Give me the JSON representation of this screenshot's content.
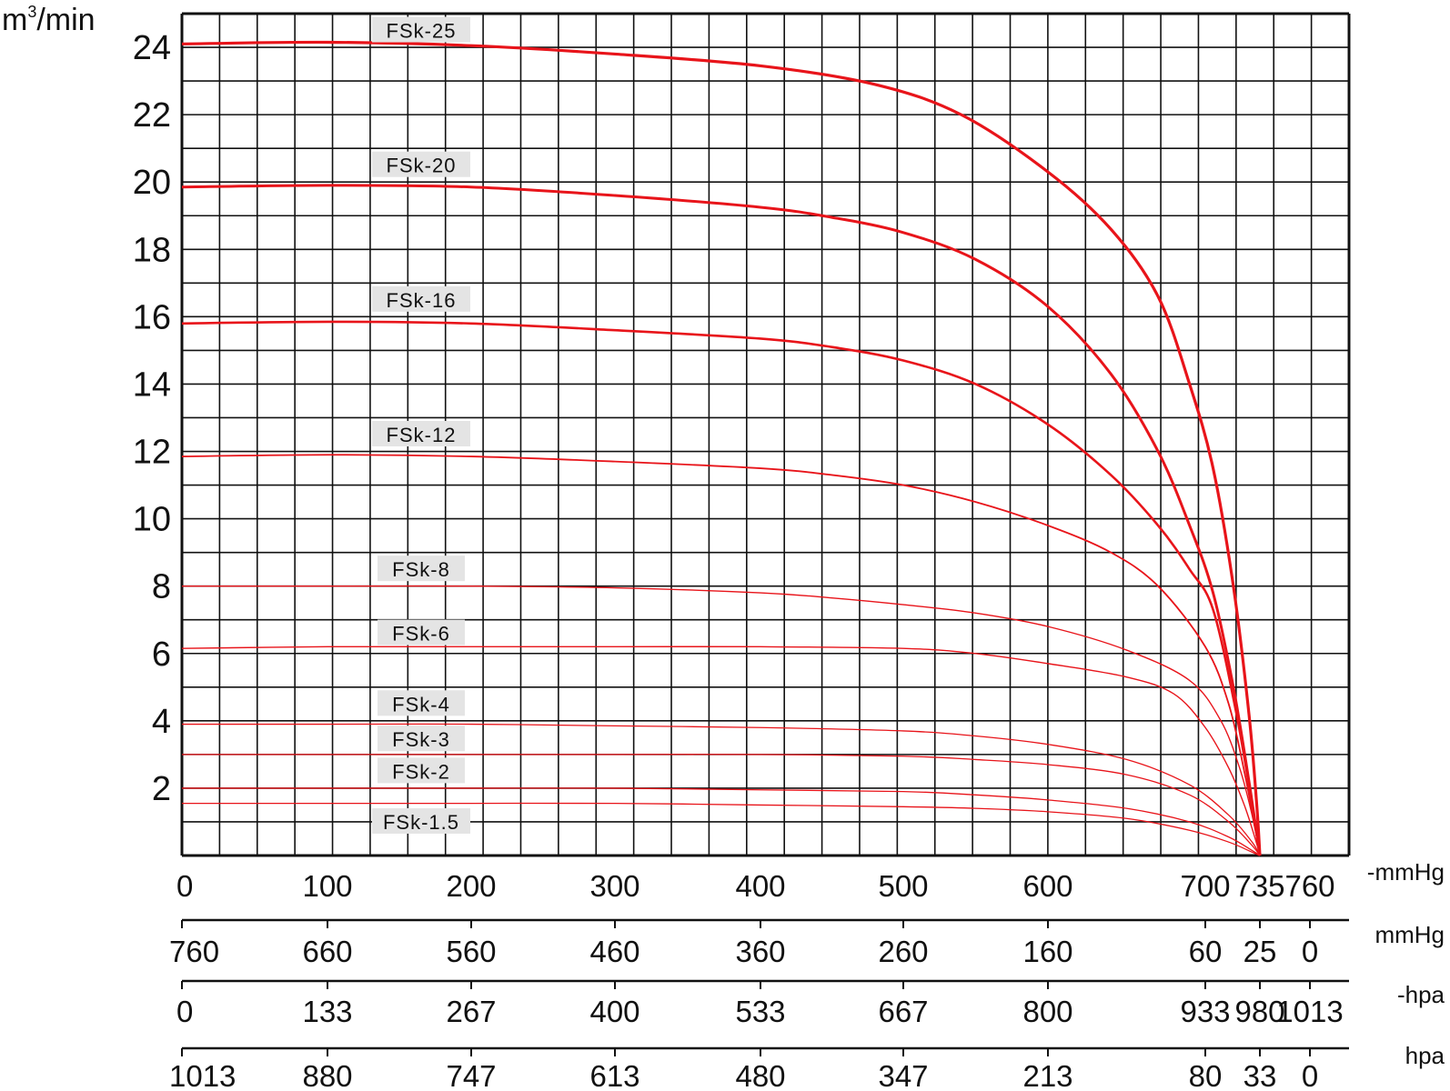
{
  "chart_data": {
    "type": "line",
    "ylabel": "m",
    "ylabel_sup": "3",
    "ylabel_suffix": "/min",
    "ylim": [
      0,
      25
    ],
    "y_ticks": [
      2,
      4,
      6,
      8,
      10,
      12,
      14,
      16,
      18,
      20,
      22,
      24
    ],
    "xlim": [
      0,
      760
    ],
    "x_unit": "mmHg",
    "grid": true,
    "series": [
      {
        "name": "FSk-25",
        "color": "#e8141a",
        "width": 3.2,
        "x": [
          0,
          100,
          200,
          300,
          400,
          480,
          540,
          600,
          640,
          670,
          690,
          705,
          718,
          728,
          733,
          735
        ],
        "y": [
          24.1,
          24.15,
          24.05,
          23.8,
          23.45,
          22.9,
          22.0,
          20.3,
          18.6,
          16.6,
          14.0,
          11.5,
          8.0,
          4.2,
          1.5,
          0
        ]
      },
      {
        "name": "FSk-20",
        "color": "#e8141a",
        "width": 3.0,
        "x": [
          0,
          100,
          200,
          300,
          400,
          450,
          500,
          550,
          600,
          640,
          670,
          690,
          705,
          718,
          728,
          735
        ],
        "y": [
          19.85,
          19.9,
          19.85,
          19.6,
          19.25,
          18.95,
          18.5,
          17.7,
          16.3,
          14.3,
          12.0,
          9.8,
          7.8,
          5.0,
          2.2,
          0
        ]
      },
      {
        "name": "FSk-16",
        "color": "#e8141a",
        "width": 2.6,
        "x": [
          0,
          100,
          200,
          300,
          400,
          450,
          500,
          550,
          600,
          640,
          670,
          690,
          705,
          720,
          730,
          735
        ],
        "y": [
          15.8,
          15.85,
          15.8,
          15.6,
          15.35,
          15.1,
          14.7,
          14.0,
          12.8,
          11.3,
          9.8,
          8.5,
          7.3,
          4.2,
          1.5,
          0
        ]
      },
      {
        "name": "FSk-12",
        "color": "#e8141a",
        "width": 1.8,
        "x": [
          0,
          100,
          200,
          300,
          400,
          450,
          500,
          550,
          600,
          640,
          670,
          700,
          715,
          725,
          732,
          735
        ],
        "y": [
          11.85,
          11.9,
          11.85,
          11.7,
          11.5,
          11.3,
          11.0,
          10.5,
          9.8,
          9.0,
          8.0,
          6.2,
          4.5,
          2.5,
          0.8,
          0
        ]
      },
      {
        "name": "FSk-8",
        "color": "#e8141a",
        "width": 1.4,
        "x": [
          0,
          100,
          200,
          300,
          400,
          450,
          500,
          550,
          600,
          650,
          690,
          710,
          722,
          730,
          735
        ],
        "y": [
          8.0,
          8.0,
          8.0,
          7.95,
          7.8,
          7.65,
          7.45,
          7.2,
          6.8,
          6.1,
          5.2,
          4.0,
          2.6,
          1.2,
          0
        ]
      },
      {
        "name": "FSk-6",
        "color": "#e8141a",
        "width": 1.4,
        "x": [
          0,
          100,
          200,
          300,
          400,
          500,
          550,
          600,
          650,
          680,
          700,
          715,
          725,
          732,
          735
        ],
        "y": [
          6.15,
          6.2,
          6.2,
          6.2,
          6.2,
          6.15,
          6.0,
          5.7,
          5.3,
          4.8,
          3.8,
          2.6,
          1.5,
          0.5,
          0
        ]
      },
      {
        "name": "FSk-4",
        "color": "#e8141a",
        "width": 1.3,
        "x": [
          0,
          100,
          200,
          300,
          400,
          500,
          550,
          600,
          650,
          690,
          715,
          730,
          735
        ],
        "y": [
          3.9,
          3.9,
          3.9,
          3.85,
          3.8,
          3.7,
          3.55,
          3.3,
          2.85,
          2.1,
          1.2,
          0.4,
          0
        ]
      },
      {
        "name": "FSk-3",
        "color": "#e8141a",
        "width": 1.3,
        "x": [
          0,
          100,
          200,
          300,
          400,
          500,
          550,
          600,
          650,
          690,
          715,
          730,
          735
        ],
        "y": [
          3.0,
          3.0,
          3.0,
          3.0,
          3.0,
          2.95,
          2.85,
          2.7,
          2.4,
          1.8,
          1.0,
          0.3,
          0
        ]
      },
      {
        "name": "FSk-2",
        "color": "#e8141a",
        "width": 1.3,
        "x": [
          0,
          100,
          200,
          300,
          400,
          500,
          550,
          600,
          650,
          690,
          715,
          730,
          735
        ],
        "y": [
          2.0,
          2.0,
          2.0,
          2.0,
          1.95,
          1.9,
          1.8,
          1.65,
          1.4,
          1.0,
          0.55,
          0.15,
          0
        ]
      },
      {
        "name": "FSk-1.5",
        "color": "#e8141a",
        "width": 1.3,
        "x": [
          0,
          100,
          200,
          300,
          400,
          500,
          550,
          600,
          650,
          690,
          715,
          730,
          735
        ],
        "y": [
          1.55,
          1.55,
          1.55,
          1.55,
          1.5,
          1.45,
          1.4,
          1.3,
          1.1,
          0.75,
          0.4,
          0.1,
          0
        ]
      }
    ],
    "label_y": {
      "FSk-25": 24.5,
      "FSk-20": 20.5,
      "FSk-16": 16.5,
      "FSk-12": 12.5,
      "FSk-8": 8.5,
      "FSk-6": 6.6,
      "FSk-4": 4.5,
      "FSk-3": 3.45,
      "FSk-2": 2.5,
      "FSk-1.5": 1.0
    },
    "axes": [
      {
        "unit": "-mmHg",
        "positions": [
          0,
          100,
          200,
          300,
          400,
          500,
          600,
          700,
          735,
          760
        ],
        "labels": [
          "0",
          "100",
          "200",
          "300",
          "400",
          "500",
          "600",
          "700",
          "735",
          "760"
        ]
      },
      {
        "unit": "mmHg",
        "positions": [
          0,
          100,
          200,
          300,
          400,
          500,
          600,
          700,
          735,
          760
        ],
        "labels": [
          "760",
          "660",
          "560",
          "460",
          "360",
          "260",
          "160",
          "60",
          "25",
          "0"
        ]
      },
      {
        "unit": "-hpa",
        "positions": [
          0,
          100,
          200,
          300,
          400,
          500,
          600,
          700,
          735,
          760
        ],
        "labels": [
          "0",
          "133",
          "267",
          "400",
          "533",
          "667",
          "800",
          "933",
          "980",
          "1013"
        ]
      },
      {
        "unit": "hpa",
        "positions": [
          0,
          100,
          200,
          300,
          400,
          500,
          600,
          700,
          735,
          760
        ],
        "labels": [
          "1013",
          "880",
          "747",
          "613",
          "480",
          "347",
          "213",
          "80",
          "33",
          "0"
        ]
      }
    ]
  }
}
